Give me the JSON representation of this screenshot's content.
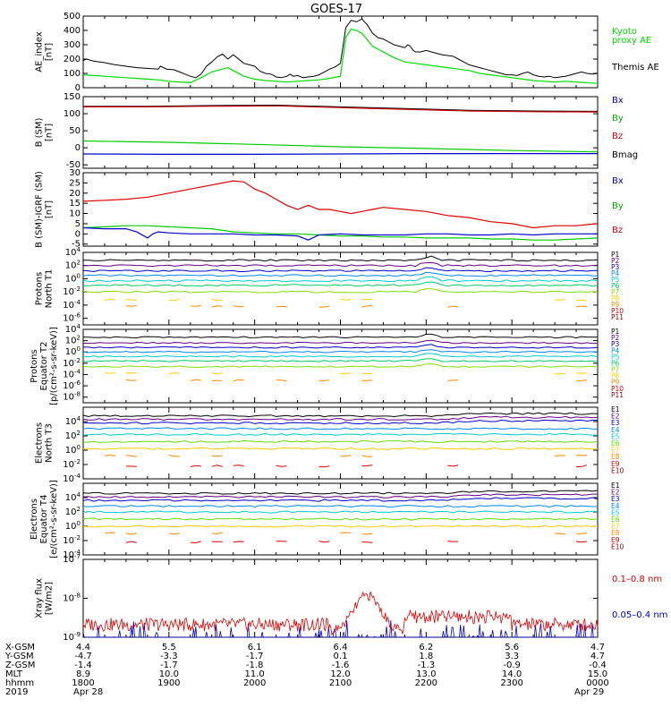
{
  "title": "GOES-17",
  "panels": [
    {
      "id": "ae",
      "ylabel": [
        "AE_index",
        "[nT]"
      ],
      "scale": "linear",
      "ylim": [
        0,
        500
      ],
      "ticks": [
        "0",
        "100",
        "200",
        "300",
        "400",
        "500"
      ],
      "tick_values": [
        0,
        100,
        200,
        300,
        400,
        500
      ],
      "legend": [
        {
          "text": "Kyoto",
          "color": "#00dd00"
        },
        {
          "text": "proxy AE",
          "color": "#00dd00"
        },
        {
          "text": "Themis AE",
          "color": "#000000"
        }
      ],
      "series": [
        {
          "name": "Themis AE",
          "color": "#000000",
          "x": [
            0,
            0.3,
            1,
            2,
            3,
            4,
            5,
            6,
            7,
            7.2,
            7.8,
            8.5,
            9,
            9.5,
            10,
            10.5,
            11,
            11.5,
            12,
            12.5,
            13,
            13.5,
            14,
            15,
            16,
            16.5,
            17,
            17.5,
            17.8,
            18,
            18.5,
            19,
            19.3,
            19.6,
            20,
            20.5,
            21,
            21.5,
            22,
            22.5,
            23,
            23.5,
            24,
            24.5,
            25,
            25.5,
            26,
            26.5,
            27,
            27.5,
            28,
            28.5,
            29,
            29.5,
            30,
            30.3,
            30.5,
            30.8,
            31,
            31.5,
            32,
            32.5,
            33,
            33.5,
            34,
            34.5,
            35,
            35.5,
            36,
            36.5,
            37,
            37.5,
            38,
            38.5,
            39,
            39.5,
            40,
            40.5,
            41,
            41.5,
            42,
            42.5,
            43,
            43.5,
            44,
            44.5,
            45,
            45.5,
            46,
            46.5,
            47,
            47.5,
            48
          ],
          "y": [
            190,
            200,
            185,
            175,
            160,
            150,
            140,
            135,
            130,
            150,
            130,
            125,
            110,
            95,
            80,
            70,
            95,
            150,
            180,
            215,
            235,
            200,
            230,
            170,
            150,
            115,
            100,
            95,
            85,
            75,
            70,
            80,
            95,
            80,
            85,
            70,
            75,
            80,
            90,
            110,
            130,
            145,
            170,
            420,
            470,
            460,
            480,
            440,
            380,
            350,
            340,
            320,
            300,
            290,
            280,
            300,
            290,
            260,
            250,
            250,
            260,
            250,
            240,
            230,
            225,
            220,
            200,
            180,
            160,
            150,
            140,
            130,
            120,
            110,
            100,
            90,
            90,
            85,
            100,
            110,
            90,
            80,
            75,
            80,
            70,
            75,
            80,
            90,
            100,
            110,
            100,
            95,
            100
          ]
        },
        {
          "name": "Kyoto proxy AE",
          "color": "#00dd00",
          "x": [
            0,
            1,
            2,
            3,
            4,
            5,
            6,
            7,
            8,
            9,
            10,
            11,
            11.5,
            12,
            12.5,
            13,
            13.5,
            14,
            15,
            16,
            17,
            18,
            19,
            20,
            21,
            22,
            23,
            24,
            24.5,
            25,
            25.5,
            26,
            27,
            28,
            29,
            30,
            31,
            32,
            33,
            34,
            35,
            36,
            37,
            38,
            39,
            40,
            41,
            42,
            43,
            44,
            45,
            46,
            47,
            48
          ],
          "y": [
            90,
            85,
            80,
            75,
            70,
            65,
            60,
            55,
            45,
            40,
            35,
            70,
            90,
            110,
            120,
            130,
            140,
            120,
            80,
            60,
            50,
            45,
            40,
            45,
            50,
            55,
            65,
            80,
            350,
            410,
            400,
            380,
            290,
            250,
            210,
            180,
            170,
            160,
            150,
            140,
            130,
            120,
            100,
            90,
            80,
            70,
            60,
            50,
            45,
            40,
            45,
            40,
            35,
            30
          ]
        }
      ]
    },
    {
      "id": "bsm",
      "ylabel": [
        "B (SM)",
        "[nT]"
      ],
      "scale": "linear",
      "ylim": [
        -60,
        150
      ],
      "ticks": [
        "-50",
        "0",
        "50",
        "100",
        "150"
      ],
      "tick_values": [
        -50,
        0,
        50,
        100,
        150
      ],
      "legend": [
        {
          "text": "Bx",
          "color": "#0000cc"
        },
        {
          "text": "By",
          "color": "#00aa00"
        },
        {
          "text": "Bz",
          "color": "#dd0000"
        },
        {
          "text": "Bmag",
          "color": "#000000"
        }
      ],
      "series": [
        {
          "name": "Bmag",
          "color": "#000000",
          "x": [
            0,
            6,
            12,
            18,
            24,
            30,
            36,
            42,
            48
          ],
          "y": [
            122,
            122,
            124,
            125,
            120,
            115,
            110,
            108,
            107
          ]
        },
        {
          "name": "Bz",
          "color": "#cc0000",
          "x": [
            0,
            6,
            12,
            18,
            24,
            30,
            36,
            42,
            48
          ],
          "y": [
            120,
            120,
            122,
            123,
            118,
            113,
            108,
            106,
            105
          ]
        },
        {
          "name": "By",
          "color": "#00cc00",
          "x": [
            0,
            8,
            16,
            24,
            32,
            40,
            48
          ],
          "y": [
            20,
            16,
            10,
            3,
            -2,
            -8,
            -12
          ]
        },
        {
          "name": "Bx",
          "color": "#0000cc",
          "x": [
            0,
            8,
            16,
            24,
            32,
            40,
            48
          ],
          "y": [
            -18,
            -19,
            -19,
            -18,
            -17,
            -17,
            -17
          ]
        }
      ]
    },
    {
      "id": "bdiff",
      "ylabel": [
        "B (SM)-IGRF (SM)",
        "[nT]"
      ],
      "scale": "linear",
      "ylim": [
        -6,
        30
      ],
      "ticks": [
        "-5",
        "0",
        "5",
        "10",
        "15",
        "20",
        "25",
        "30"
      ],
      "tick_values": [
        -5,
        0,
        5,
        10,
        15,
        20,
        25,
        30
      ],
      "legend": [
        {
          "text": "Bx",
          "color": "#0000cc"
        },
        {
          "text": "By",
          "color": "#00aa00"
        },
        {
          "text": "Bz",
          "color": "#dd0000"
        }
      ],
      "series": [
        {
          "name": "Bz",
          "color": "#dd0000",
          "x": [
            0,
            2,
            4,
            6,
            8,
            10,
            12,
            13,
            14,
            15,
            16,
            17,
            18,
            19,
            20,
            21,
            22,
            23,
            24,
            25,
            26,
            27,
            28,
            30,
            32,
            34,
            36,
            38,
            40,
            42,
            44,
            46,
            48
          ],
          "y": [
            16,
            16.5,
            17,
            18,
            20,
            22,
            24,
            25,
            26,
            25.5,
            22,
            20,
            17,
            14,
            12,
            14,
            12,
            12,
            11,
            10,
            11,
            12,
            13,
            12,
            11,
            9,
            8,
            6,
            5,
            3,
            4,
            4,
            5
          ]
        },
        {
          "name": "By",
          "color": "#00cc00",
          "x": [
            0,
            2,
            4,
            6,
            8,
            10,
            12,
            14,
            16,
            18,
            20,
            22,
            24,
            26,
            28,
            30,
            32,
            34,
            36,
            38,
            40,
            42,
            44,
            46,
            48
          ],
          "y": [
            3,
            3.5,
            4,
            4,
            3.5,
            3,
            2.5,
            1,
            0.5,
            0,
            0,
            -0.5,
            -1,
            -1,
            -1.5,
            -1.5,
            -2,
            -2,
            -2,
            -2.5,
            -2.5,
            -3,
            -3,
            -2.5,
            -2
          ]
        },
        {
          "name": "Bx",
          "color": "#0000cc",
          "x": [
            0,
            2,
            4,
            5,
            6,
            6.5,
            7,
            8,
            10,
            12,
            14,
            16,
            18,
            20,
            21,
            22,
            24,
            26,
            28,
            30,
            32,
            34,
            36,
            38,
            40,
            42,
            44,
            46,
            48
          ],
          "y": [
            3,
            2.5,
            2.5,
            1,
            -2,
            0,
            1,
            0.5,
            0,
            0,
            0,
            -0.5,
            -0.5,
            -1,
            -3,
            -0.5,
            0,
            -0.5,
            -0.5,
            -0.5,
            0,
            0,
            -0.5,
            -0.5,
            0,
            -0.5,
            0,
            0,
            0
          ]
        }
      ]
    },
    {
      "id": "p1",
      "ylabel": [
        "Protons",
        "North T1"
      ],
      "scale": "log",
      "ylim": [
        -7,
        4
      ],
      "ticks": [
        "10^4",
        "10^2",
        "10^0",
        "10^-2",
        "10^-4",
        "10^-6"
      ],
      "tick_values": [
        4,
        2,
        0,
        -2,
        -4,
        -6
      ],
      "legend": [
        {
          "text": "P1",
          "color": "#000000"
        },
        {
          "text": "P2",
          "color": "#660088"
        },
        {
          "text": "P3",
          "color": "#0000cc"
        },
        {
          "text": "P4",
          "color": "#0088ff"
        },
        {
          "text": "P5",
          "color": "#00cccc"
        },
        {
          "text": "P6",
          "color": "#00cc66"
        },
        {
          "text": "P7",
          "color": "#88dd00"
        },
        {
          "text": "P8",
          "color": "#ffcc00"
        },
        {
          "text": "P9",
          "color": "#ff8800"
        },
        {
          "text": "P10",
          "color": "#dd0000"
        },
        {
          "text": "P11",
          "color": "#880000"
        }
      ],
      "levels": [
        2.8,
        2.0,
        1.2,
        0.5,
        -0.3,
        -1.0,
        -2.0,
        -3.2,
        -4.2
      ]
    },
    {
      "id": "p2",
      "ylabel": [
        "Protons",
        "Equator T2",
        "[p/(cm²-s-sr-keV)]"
      ],
      "scale": "log",
      "ylim": [
        -9,
        4
      ],
      "ticks": [
        "10^4",
        "10^2",
        "10^0",
        "10^-2",
        "10^-4",
        "10^-6",
        "10^-8"
      ],
      "tick_values": [
        4,
        2,
        0,
        -2,
        -4,
        -6,
        -8
      ],
      "legend": [
        {
          "text": "P1",
          "color": "#000000"
        },
        {
          "text": "P2",
          "color": "#660088"
        },
        {
          "text": "P3",
          "color": "#0000cc"
        },
        {
          "text": "P4",
          "color": "#0088ff"
        },
        {
          "text": "P5",
          "color": "#00cccc"
        },
        {
          "text": "P6",
          "color": "#00cc66"
        },
        {
          "text": "P7",
          "color": "#88dd00"
        },
        {
          "text": "P8",
          "color": "#ffcc00"
        },
        {
          "text": "P9",
          "color": "#ff8800"
        },
        {
          "text": "P10",
          "color": "#dd0000"
        },
        {
          "text": "P11",
          "color": "#880000"
        }
      ],
      "levels": [
        2.6,
        1.6,
        0.8,
        0.0,
        -0.8,
        -1.6,
        -2.6,
        -3.8,
        -5.0
      ]
    },
    {
      "id": "e3",
      "ylabel": [
        "Electrons",
        "North T3"
      ],
      "scale": "log",
      "ylim": [
        -4,
        6
      ],
      "ticks": [
        "10^4",
        "10^2",
        "10^0",
        "10^-2",
        "10^-4"
      ],
      "tick_values": [
        4,
        2,
        0,
        -2,
        -4
      ],
      "legend": [
        {
          "text": "E1",
          "color": "#000000"
        },
        {
          "text": "E2",
          "color": "#660088"
        },
        {
          "text": "E3",
          "color": "#0000cc"
        },
        {
          "text": "E4",
          "color": "#0088ff"
        },
        {
          "text": "E5",
          "color": "#00cccc"
        },
        {
          "text": "E6",
          "color": "#66dd00"
        },
        {
          "text": "E7",
          "color": "#ffcc00"
        },
        {
          "text": "E8",
          "color": "#ff8800"
        },
        {
          "text": "E9",
          "color": "#dd0000"
        },
        {
          "text": "E10",
          "color": "#880000"
        }
      ],
      "levels": [
        4.8,
        4.3,
        3.8,
        3.0,
        2.2,
        1.2,
        0.2,
        -0.8,
        -2.2
      ]
    },
    {
      "id": "e4",
      "ylabel": [
        "Electrons",
        "Equator T4",
        "[e/(cm²-s-sr-keV)]"
      ],
      "scale": "log",
      "ylim": [
        -4,
        6
      ],
      "ticks": [
        "10^4",
        "10^2",
        "10^0",
        "10^-2",
        "10^-4"
      ],
      "tick_values": [
        4,
        2,
        0,
        -2,
        -4
      ],
      "legend": [
        {
          "text": "E1",
          "color": "#000000"
        },
        {
          "text": "E2",
          "color": "#660088"
        },
        {
          "text": "E3",
          "color": "#0000cc"
        },
        {
          "text": "E4",
          "color": "#0088ff"
        },
        {
          "text": "E5",
          "color": "#00cccc"
        },
        {
          "text": "E6",
          "color": "#66dd00"
        },
        {
          "text": "E7",
          "color": "#ffcc00"
        },
        {
          "text": "E8",
          "color": "#ff8800"
        },
        {
          "text": "E9",
          "color": "#dd0000"
        },
        {
          "text": "E10",
          "color": "#880000"
        }
      ],
      "levels": [
        4.6,
        4.1,
        3.6,
        2.8,
        2.0,
        1.0,
        0.0,
        -1.0,
        -2.2
      ]
    },
    {
      "id": "xray",
      "ylabel": [
        "Xray flux",
        "[W/m2]"
      ],
      "scale": "log",
      "ylim": [
        -9,
        -7
      ],
      "ticks": [
        "10^-7",
        "10^-8",
        "10^-9"
      ],
      "tick_values": [
        -7,
        -8,
        -9
      ],
      "legend": [
        {
          "text": "0.1–0.8 nm",
          "color": "#dd0000"
        },
        {
          "text": "0.05–0.4 nm",
          "color": "#0000cc"
        }
      ]
    }
  ],
  "time_axis": {
    "label_ticks": [
      "1800",
      "1900",
      "2000",
      "2100",
      "2200",
      "2300",
      "0000"
    ],
    "rows": [
      {
        "label": "X-GSM",
        "values": [
          "4.4",
          "5.5",
          "6.1",
          "6.4",
          "6.2",
          "5.6",
          "4.7"
        ]
      },
      {
        "label": "Y-GSM",
        "values": [
          "-4.7",
          "-3.3",
          "-1.7",
          "0.1",
          "1.8",
          "3.3",
          "4.7"
        ]
      },
      {
        "label": "Z-GSM",
        "values": [
          "-1.4",
          "-1.7",
          "-1.8",
          "-1.6",
          "-1.3",
          "-0.9",
          "-0.4"
        ]
      },
      {
        "label": "MLT",
        "values": [
          "8.9",
          "10.0",
          "11.0",
          "12.0",
          "13.0",
          "14.0",
          "15.0"
        ]
      },
      {
        "label": "hhmm",
        "values": [
          "1800",
          "1900",
          "2000",
          "2100",
          "2200",
          "2300",
          "0000"
        ]
      },
      {
        "label": "2019",
        "values": [
          "Apr 28",
          "",
          "",
          "",
          "",
          "",
          "Apr 29"
        ]
      }
    ]
  },
  "colors": {
    "axis": "#000000",
    "background": "#ffffff"
  }
}
